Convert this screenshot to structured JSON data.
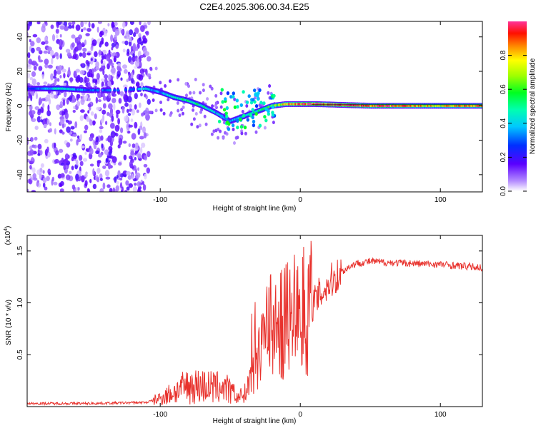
{
  "title": "C2E4.2025.306.00.34.E25",
  "chart_data": [
    {
      "type": "heatmap",
      "name": "spectrogram",
      "xlabel": "Height of straight line (km)",
      "ylabel": "Frequency (Hz)",
      "xlim": [
        -195,
        130
      ],
      "ylim": [
        -50,
        49
      ],
      "xticks": [
        -100,
        0,
        100
      ],
      "yticks": [
        -40,
        -20,
        0,
        20,
        40
      ],
      "colorbar": {
        "label": "Normalized spectral amplitude",
        "range": [
          0,
          1
        ],
        "ticks": [
          0.0,
          0.2,
          0.4,
          0.6,
          0.8
        ]
      },
      "features": [
        {
          "label": "broadband noise",
          "x_range": [
            -195,
            -108
          ],
          "freq_range": [
            -50,
            49
          ],
          "amplitude": 0.12
        },
        {
          "label": "carrier trace",
          "x": [
            -195,
            -170,
            -150,
            -130,
            -110,
            -100,
            -90,
            -80,
            -70,
            -60,
            -50,
            -40,
            -30,
            -20,
            -10,
            0,
            10,
            50,
            100,
            130
          ],
          "freq": [
            10,
            10,
            9,
            9,
            10,
            8,
            5,
            3,
            0,
            -4,
            -9,
            -6,
            -3,
            0,
            1,
            1,
            1,
            0,
            0,
            0
          ],
          "amplitude": [
            0.25,
            0.45,
            0.3,
            0.3,
            0.4,
            0.35,
            0.45,
            0.55,
            0.5,
            0.4,
            0.35,
            0.45,
            0.5,
            0.6,
            0.85,
            0.9,
            0.95,
            0.95,
            0.75,
            0.9
          ]
        }
      ]
    },
    {
      "type": "line",
      "name": "snr",
      "xlabel": "Height of straight line (km)",
      "ylabel": "SNR (10 * v/v)",
      "multiplier": "(x10^4)",
      "multiplier_base": "(x10",
      "multiplier_exp": "4",
      "multiplier_close": ")",
      "xlim": [
        -195,
        130
      ],
      "ylim": [
        0,
        1.65
      ],
      "xticks": [
        -100,
        0,
        100
      ],
      "yticks": [
        0.5,
        1.0,
        1.5
      ],
      "color": "#e8322d",
      "series": [
        {
          "name": "SNR envelope",
          "x": [
            -195,
            -150,
            -110,
            -100,
            -90,
            -80,
            -70,
            -60,
            -55,
            -50,
            -45,
            -40,
            -35,
            -30,
            -25,
            -22,
            -20,
            -18,
            -15,
            -10,
            -5,
            0,
            5,
            10,
            15,
            20,
            25,
            30,
            35,
            40,
            50,
            60,
            80,
            100,
            120,
            130
          ],
          "y": [
            0.03,
            0.03,
            0.04,
            0.08,
            0.14,
            0.2,
            0.2,
            0.18,
            0.2,
            0.14,
            0.1,
            0.12,
            0.28,
            0.55,
            0.75,
            0.9,
            0.8,
            0.72,
            0.75,
            0.85,
            0.9,
            0.93,
            0.95,
            1.0,
            1.1,
            1.18,
            1.25,
            1.3,
            1.35,
            1.38,
            1.4,
            1.39,
            1.38,
            1.37,
            1.35,
            1.34
          ]
        }
      ]
    }
  ]
}
